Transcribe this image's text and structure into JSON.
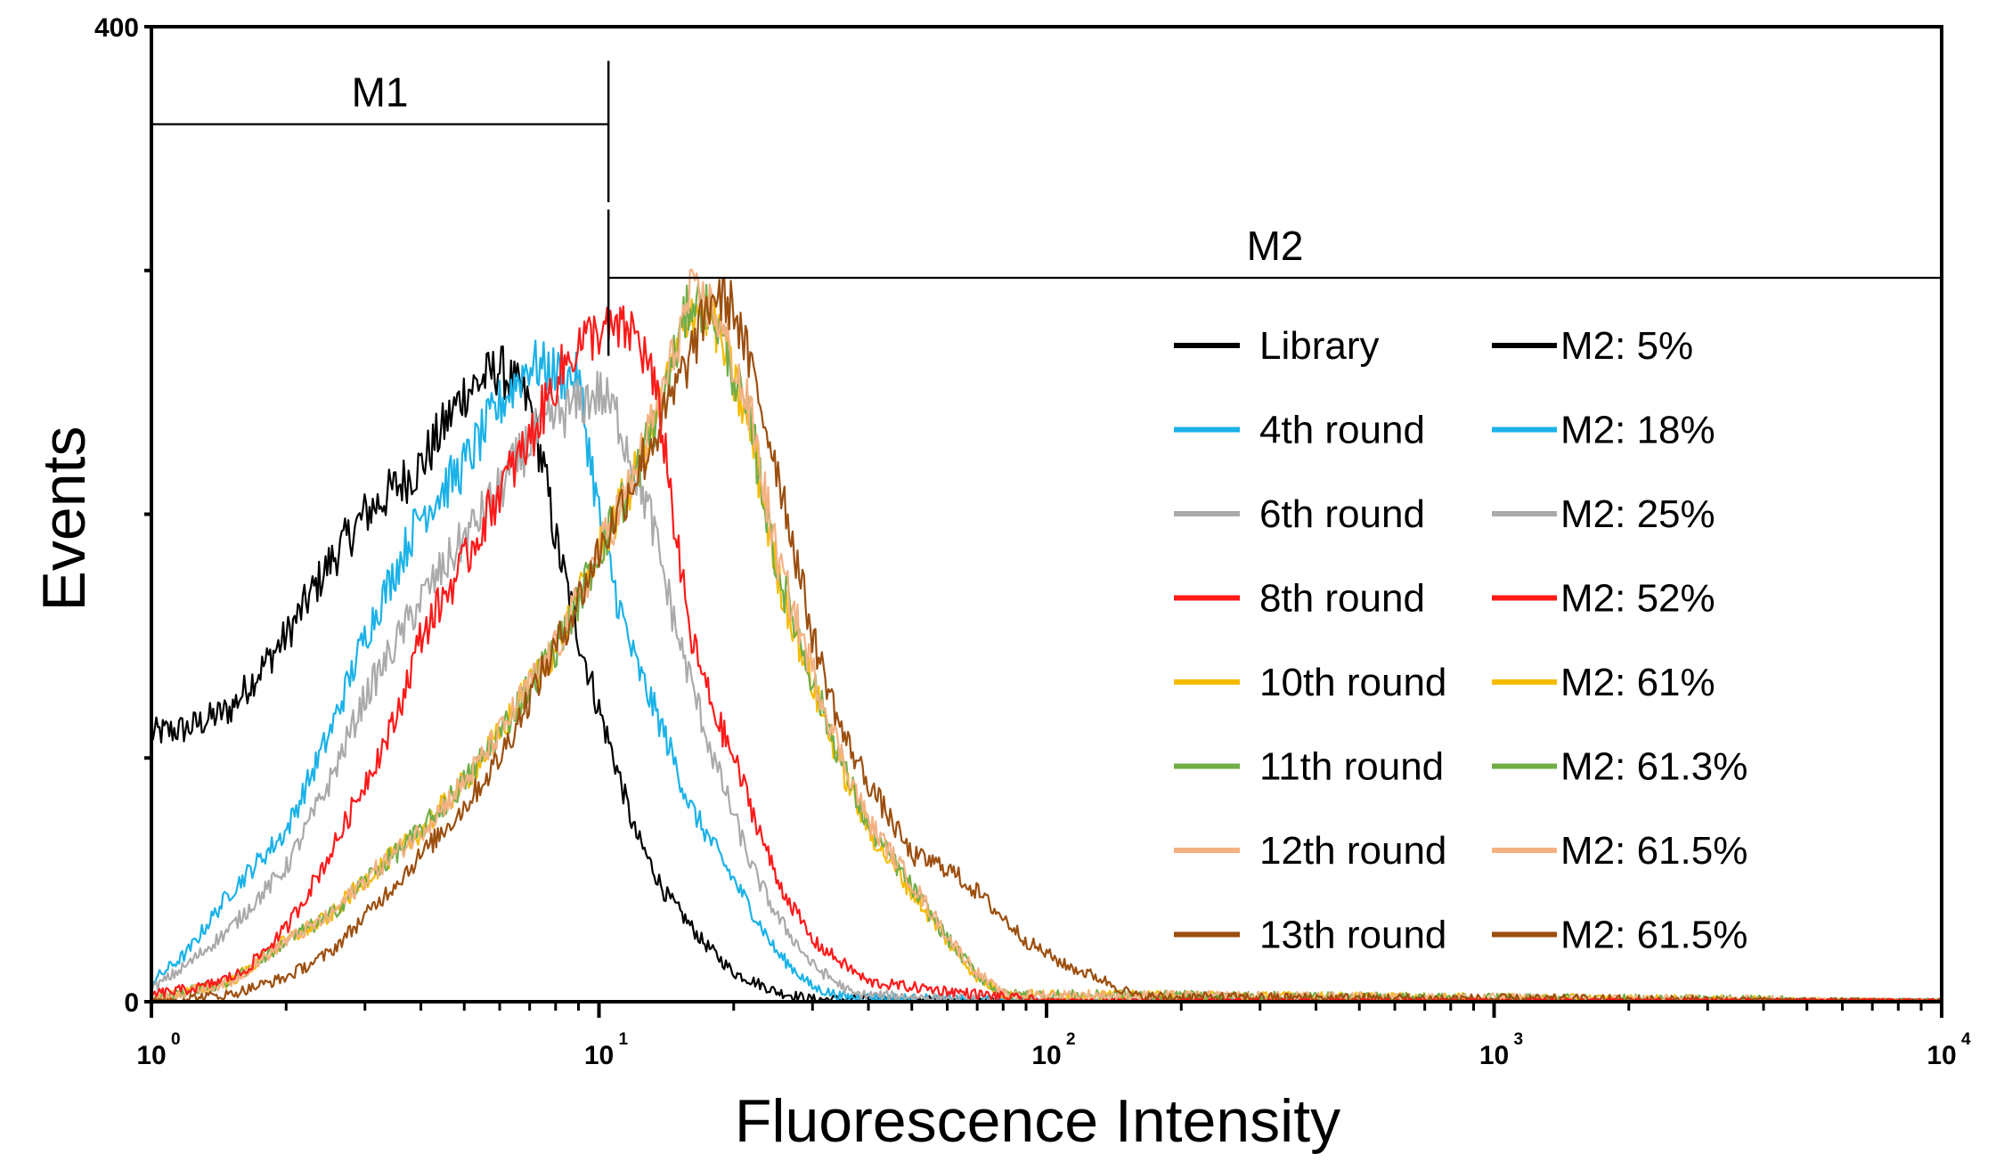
{
  "chart_data": {
    "type": "line",
    "title": "",
    "xlabel": "Fluorescence Intensity",
    "ylabel": "Events",
    "x_scale": "log",
    "xlim": [
      1,
      10000
    ],
    "ylim": [
      0,
      400
    ],
    "x_tick_labels": [
      {
        "base": "10",
        "exp": "0"
      },
      {
        "base": "10",
        "exp": "1"
      },
      {
        "base": "10",
        "exp": "2"
      },
      {
        "base": "10",
        "exp": "3"
      },
      {
        "base": "10",
        "exp": "4"
      }
    ],
    "y_tick_labels": [
      "400",
      "0"
    ],
    "grid": false,
    "markers": [
      {
        "label": "M1",
        "x_start": 1,
        "x_end": 10.5,
        "y": 360
      },
      {
        "label": "M2",
        "x_start": 10.5,
        "x_end": 10000,
        "y": 297
      }
    ],
    "legend_position": "right",
    "series": [
      {
        "name": "Library",
        "stat": "M2: 5%",
        "color": "#000000",
        "x": [
          1,
          1.2,
          1.5,
          2,
          2.5,
          3,
          4,
          5,
          6,
          7,
          7.5,
          8,
          9,
          10,
          11,
          12,
          14,
          17,
          20,
          25,
          30,
          100,
          10000
        ],
        "y": [
          110,
          112,
          120,
          150,
          180,
          200,
          220,
          250,
          260,
          245,
          220,
          190,
          150,
          120,
          95,
          70,
          45,
          25,
          12,
          4,
          1,
          0,
          0
        ]
      },
      {
        "name": "4th round",
        "stat": "M2: 18%",
        "color": "#1ab2e8",
        "x": [
          1,
          1.2,
          1.5,
          2,
          2.5,
          3,
          4,
          5,
          6,
          7,
          8,
          9,
          10,
          11,
          12,
          14,
          16,
          20,
          25,
          30,
          35,
          100,
          10000
        ],
        "y": [
          8,
          20,
          45,
          70,
          110,
          150,
          200,
          220,
          245,
          262,
          258,
          255,
          200,
          165,
          140,
          110,
          80,
          50,
          20,
          6,
          2,
          0,
          0
        ]
      },
      {
        "name": "6th round",
        "stat": "M2: 25%",
        "color": "#aaaaaa",
        "x": [
          1,
          1.2,
          1.5,
          2,
          2.5,
          3,
          4,
          5,
          6,
          7,
          8,
          9,
          10,
          11,
          13,
          15,
          18,
          22,
          25,
          30,
          37,
          100,
          10000
        ],
        "y": [
          5,
          15,
          30,
          55,
          90,
          125,
          165,
          190,
          210,
          230,
          240,
          245,
          250,
          240,
          200,
          150,
          100,
          55,
          35,
          15,
          3,
          0,
          0
        ]
      },
      {
        "name": "8th round",
        "stat": "M2: 52%",
        "color": "#ff1a1a",
        "x": [
          1,
          1.3,
          1.6,
          2,
          2.5,
          3,
          3.5,
          4,
          5,
          6,
          7,
          8,
          9,
          10,
          12,
          13,
          14,
          15,
          16,
          18,
          20,
          25,
          30,
          40,
          100,
          10000
        ],
        "y": [
          3,
          6,
          12,
          30,
          60,
          90,
          115,
          150,
          180,
          210,
          230,
          255,
          270,
          275,
          275,
          260,
          230,
          185,
          150,
          120,
          100,
          50,
          25,
          8,
          0,
          0
        ]
      },
      {
        "name": "10th round",
        "stat": "M2: 61%",
        "color": "#f5bb00",
        "x": [
          1,
          1.5,
          2,
          2.5,
          3,
          4,
          5,
          6,
          7,
          8,
          9,
          10,
          12,
          14,
          16,
          18,
          20,
          22,
          25,
          30,
          35,
          40,
          50,
          60,
          70,
          80,
          10000
        ],
        "y": [
          1,
          8,
          25,
          35,
          50,
          70,
          90,
          110,
          130,
          145,
          165,
          185,
          215,
          250,
          285,
          280,
          255,
          230,
          175,
          130,
          95,
          70,
          45,
          25,
          10,
          3,
          0
        ]
      },
      {
        "name": "11th round",
        "stat": "M2: 61.3%",
        "color": "#70ad47",
        "x": [
          1,
          1.5,
          2,
          2.5,
          3,
          4,
          5,
          6,
          7,
          8,
          9,
          10,
          12,
          14,
          16,
          18,
          20,
          22,
          25,
          30,
          35,
          40,
          50,
          60,
          70,
          80,
          10000
        ],
        "y": [
          1,
          8,
          25,
          35,
          50,
          70,
          90,
          110,
          130,
          145,
          165,
          185,
          215,
          250,
          288,
          283,
          258,
          233,
          178,
          132,
          97,
          72,
          47,
          26,
          11,
          3,
          0
        ]
      },
      {
        "name": "12th round",
        "stat": "M2: 61.5%",
        "color": "#f4b183",
        "x": [
          1,
          1.5,
          2,
          2.5,
          3,
          4,
          5,
          6,
          7,
          8,
          9,
          10,
          12,
          14,
          16,
          18,
          20,
          22,
          25,
          30,
          35,
          40,
          50,
          60,
          70,
          80,
          10000
        ],
        "y": [
          1,
          8,
          25,
          35,
          50,
          70,
          90,
          110,
          130,
          145,
          165,
          185,
          215,
          252,
          290,
          285,
          262,
          238,
          182,
          136,
          100,
          74,
          49,
          27,
          12,
          3,
          0
        ]
      },
      {
        "name": "13th round",
        "stat": "M2: 61.5%",
        "color": "#9c4f0f",
        "x": [
          1,
          1.5,
          2,
          2.5,
          3,
          4,
          5,
          6,
          7,
          8,
          9,
          10,
          12,
          14,
          16,
          18,
          20,
          25,
          30,
          35,
          40,
          50,
          60,
          70,
          90,
          110,
          130,
          160,
          10000
        ],
        "y": [
          0,
          3,
          10,
          20,
          35,
          60,
          80,
          100,
          125,
          145,
          165,
          185,
          215,
          240,
          265,
          290,
          285,
          220,
          150,
          110,
          90,
          60,
          55,
          45,
          25,
          15,
          10,
          2,
          0
        ]
      }
    ]
  }
}
